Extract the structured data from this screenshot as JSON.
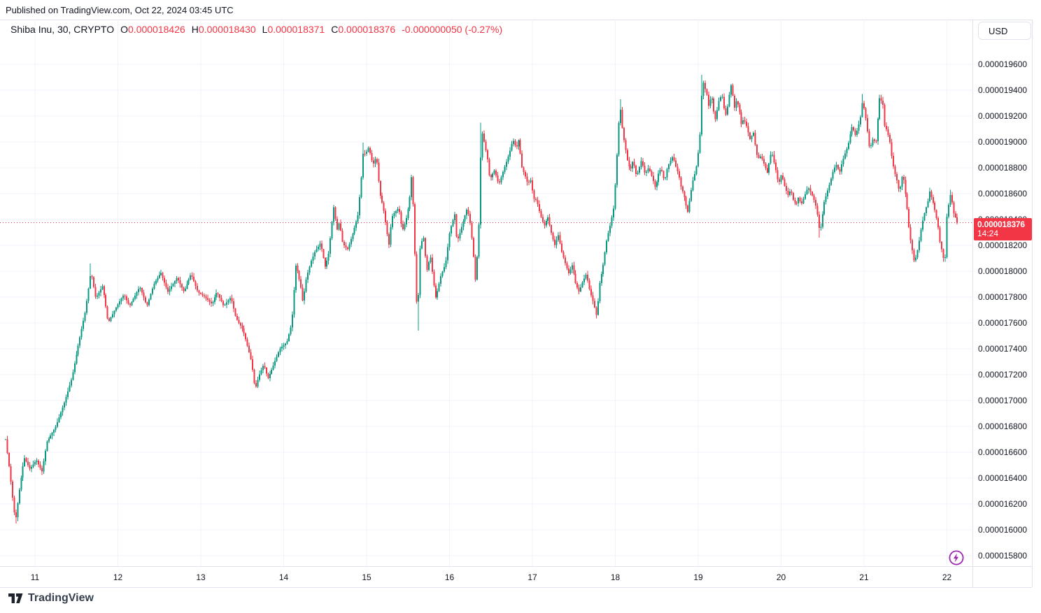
{
  "header": {
    "published": "Published on TradingView.com, Oct 22, 2024 03:45 UTC"
  },
  "legend": {
    "symbol_text": "Shiba Inu, 30, CRYPTO",
    "o_label": "O",
    "o_value": "0.000018426",
    "h_label": "H",
    "h_value": "0.000018430",
    "l_label": "L",
    "l_value": "0.000018371",
    "c_label": "C",
    "c_value": "0.000018376",
    "change": "-0.000000050 (-0.27%)"
  },
  "currency_button": {
    "label": "USD"
  },
  "price_label": {
    "price": "0.000018376",
    "countdown": "14:24"
  },
  "footer": {
    "brand": "TradingView"
  },
  "icons": {
    "boost": "lightning-bolt-icon",
    "logo": "tradingview-logo-mark"
  },
  "colors": {
    "up": "#089981",
    "down": "#f23645",
    "grid": "#f0f3fa",
    "frame": "#e0e3eb",
    "text": "#131722",
    "last_price": "#f23645",
    "boost_purple": "#9c27b0",
    "background": "#ffffff"
  },
  "chart_data": {
    "type": "candlestick",
    "title": "Shiba Inu / USD, 30-minute candles, CRYPTO",
    "symbol": "Shiba Inu",
    "interval_minutes": 30,
    "exchange": "CRYPTO",
    "quote": "USD",
    "grid": true,
    "candles_per_day": 48,
    "price_unit": "1e-9 USD",
    "last_price": 18376,
    "last_candle_ohlc": {
      "open": 18426,
      "high": 18430,
      "low": 18371,
      "close": 18376,
      "change": -50,
      "change_pct": -0.27
    },
    "y_axis": {
      "side": "right",
      "tick_step": 200,
      "min": 15700,
      "max": 19750,
      "ticks": [
        19600,
        19400,
        19200,
        19000,
        18800,
        18600,
        18400,
        18200,
        18000,
        17800,
        17600,
        17400,
        17200,
        17000,
        16800,
        16600,
        16400,
        16200,
        16000,
        15800
      ]
    },
    "x_axis": {
      "unit": "day of October 2024",
      "start_day": 10.646,
      "end_day": 22.122,
      "ticks": [
        11,
        12,
        13,
        14,
        15,
        16,
        17,
        18,
        19,
        20,
        21,
        22
      ]
    },
    "wicks": [
      {
        "day": 10.764,
        "low": 16050
      },
      {
        "day": 11.675,
        "high": 18060
      },
      {
        "day": 14.962,
        "high": 18995
      },
      {
        "day": 15.616,
        "low": 17540
      },
      {
        "day": 16.384,
        "high": 19150
      },
      {
        "day": 18.055,
        "high": 19330
      },
      {
        "day": 19.051,
        "high": 19520
      },
      {
        "day": 20.468,
        "low": 18260
      },
      {
        "day": 20.983,
        "high": 19370
      },
      {
        "day": 21.186,
        "high": 19360
      },
      {
        "day": 21.987,
        "low": 18080
      },
      {
        "day": 22.038,
        "high": 18630
      }
    ],
    "price_path": [
      [
        10.646,
        16700
      ],
      [
        10.696,
        16450
      ],
      [
        10.72,
        16300
      ],
      [
        10.764,
        16060
      ],
      [
        10.81,
        16300
      ],
      [
        10.87,
        16560
      ],
      [
        10.94,
        16470
      ],
      [
        11.017,
        16540
      ],
      [
        11.084,
        16450
      ],
      [
        11.143,
        16680
      ],
      [
        11.253,
        16800
      ],
      [
        11.363,
        17000
      ],
      [
        11.447,
        17180
      ],
      [
        11.532,
        17460
      ],
      [
        11.608,
        17690
      ],
      [
        11.675,
        18000
      ],
      [
        11.733,
        17790
      ],
      [
        11.817,
        17890
      ],
      [
        11.883,
        17600
      ],
      [
        11.996,
        17740
      ],
      [
        12.072,
        17820
      ],
      [
        12.139,
        17730
      ],
      [
        12.266,
        17880
      ],
      [
        12.35,
        17730
      ],
      [
        12.434,
        17900
      ],
      [
        12.519,
        17990
      ],
      [
        12.603,
        17840
      ],
      [
        12.713,
        17950
      ],
      [
        12.797,
        17840
      ],
      [
        12.882,
        17980
      ],
      [
        12.966,
        17840
      ],
      [
        13.051,
        17800
      ],
      [
        13.135,
        17745
      ],
      [
        13.194,
        17840
      ],
      [
        13.278,
        17730
      ],
      [
        13.363,
        17800
      ],
      [
        13.422,
        17640
      ],
      [
        13.506,
        17550
      ],
      [
        13.557,
        17440
      ],
      [
        13.616,
        17290
      ],
      [
        13.641,
        17150
      ],
      [
        13.66,
        17090
      ],
      [
        13.7,
        17190
      ],
      [
        13.759,
        17280
      ],
      [
        13.81,
        17170
      ],
      [
        13.869,
        17260
      ],
      [
        13.954,
        17400
      ],
      [
        14.038,
        17450
      ],
      [
        14.097,
        17600
      ],
      [
        14.148,
        18060
      ],
      [
        14.207,
        17880
      ],
      [
        14.232,
        17760
      ],
      [
        14.274,
        17950
      ],
      [
        14.333,
        18080
      ],
      [
        14.376,
        18150
      ],
      [
        14.418,
        18190
      ],
      [
        14.443,
        18220
      ],
      [
        14.502,
        18030
      ],
      [
        14.544,
        18140
      ],
      [
        14.603,
        18500
      ],
      [
        14.645,
        18320
      ],
      [
        14.671,
        18380
      ],
      [
        14.713,
        18210
      ],
      [
        14.772,
        18170
      ],
      [
        14.839,
        18300
      ],
      [
        14.899,
        18440
      ],
      [
        14.941,
        18750
      ],
      [
        14.962,
        18940
      ],
      [
        14.983,
        18900
      ],
      [
        15.025,
        18960
      ],
      [
        15.076,
        18820
      ],
      [
        15.118,
        18890
      ],
      [
        15.16,
        18600
      ],
      [
        15.203,
        18490
      ],
      [
        15.245,
        18310
      ],
      [
        15.27,
        18200
      ],
      [
        15.304,
        18420
      ],
      [
        15.346,
        18460
      ],
      [
        15.388,
        18490
      ],
      [
        15.43,
        18310
      ],
      [
        15.473,
        18390
      ],
      [
        15.515,
        18530
      ],
      [
        15.549,
        18780
      ],
      [
        15.574,
        18300
      ],
      [
        15.616,
        17560
      ],
      [
        15.637,
        18150
      ],
      [
        15.684,
        18280
      ],
      [
        15.726,
        18000
      ],
      [
        15.768,
        18120
      ],
      [
        15.81,
        17900
      ],
      [
        15.835,
        17790
      ],
      [
        15.895,
        17960
      ],
      [
        15.954,
        18060
      ],
      [
        16.004,
        18310
      ],
      [
        16.063,
        18440
      ],
      [
        16.089,
        18220
      ],
      [
        16.131,
        18310
      ],
      [
        16.173,
        18400
      ],
      [
        16.215,
        18490
      ],
      [
        16.249,
        18380
      ],
      [
        16.283,
        18190
      ],
      [
        16.312,
        17930
      ],
      [
        16.35,
        18250
      ],
      [
        16.384,
        19100
      ],
      [
        16.418,
        19000
      ],
      [
        16.46,
        18860
      ],
      [
        16.485,
        18710
      ],
      [
        16.544,
        18780
      ],
      [
        16.595,
        18670
      ],
      [
        16.637,
        18750
      ],
      [
        16.679,
        18830
      ],
      [
        16.721,
        18910
      ],
      [
        16.764,
        19020
      ],
      [
        16.806,
        18950
      ],
      [
        16.84,
        19030
      ],
      [
        16.865,
        18820
      ],
      [
        16.907,
        18750
      ],
      [
        16.949,
        18670
      ],
      [
        16.975,
        18720
      ],
      [
        17.017,
        18560
      ],
      [
        17.051,
        18550
      ],
      [
        17.093,
        18440
      ],
      [
        17.143,
        18350
      ],
      [
        17.186,
        18420
      ],
      [
        17.228,
        18300
      ],
      [
        17.27,
        18200
      ],
      [
        17.312,
        18280
      ],
      [
        17.354,
        18150
      ],
      [
        17.397,
        18060
      ],
      [
        17.439,
        17980
      ],
      [
        17.481,
        18050
      ],
      [
        17.523,
        17900
      ],
      [
        17.565,
        17840
      ],
      [
        17.608,
        17920
      ],
      [
        17.65,
        17980
      ],
      [
        17.692,
        17850
      ],
      [
        17.734,
        17760
      ],
      [
        17.776,
        17650
      ],
      [
        17.81,
        17900
      ],
      [
        17.852,
        18040
      ],
      [
        17.894,
        18230
      ],
      [
        17.937,
        18350
      ],
      [
        17.979,
        18480
      ],
      [
        18.004,
        18700
      ],
      [
        18.055,
        19300
      ],
      [
        18.089,
        19070
      ],
      [
        18.114,
        18980
      ],
      [
        18.148,
        18850
      ],
      [
        18.181,
        18780
      ],
      [
        18.215,
        18860
      ],
      [
        18.257,
        18730
      ],
      [
        18.316,
        18860
      ],
      [
        18.359,
        18750
      ],
      [
        18.401,
        18800
      ],
      [
        18.443,
        18730
      ],
      [
        18.485,
        18640
      ],
      [
        18.519,
        18750
      ],
      [
        18.553,
        18800
      ],
      [
        18.595,
        18690
      ],
      [
        18.62,
        18780
      ],
      [
        18.654,
        18840
      ],
      [
        18.696,
        18890
      ],
      [
        18.722,
        18820
      ],
      [
        18.764,
        18750
      ],
      [
        18.789,
        18660
      ],
      [
        18.831,
        18580
      ],
      [
        18.873,
        18450
      ],
      [
        18.932,
        18690
      ],
      [
        18.975,
        18790
      ],
      [
        19.017,
        19000
      ],
      [
        19.051,
        19490
      ],
      [
        19.076,
        19420
      ],
      [
        19.101,
        19380
      ],
      [
        19.127,
        19270
      ],
      [
        19.16,
        19370
      ],
      [
        19.186,
        19240
      ],
      [
        19.211,
        19170
      ],
      [
        19.245,
        19310
      ],
      [
        19.287,
        19370
      ],
      [
        19.312,
        19260
      ],
      [
        19.338,
        19200
      ],
      [
        19.371,
        19350
      ],
      [
        19.397,
        19440
      ],
      [
        19.414,
        19370
      ],
      [
        19.439,
        19260
      ],
      [
        19.464,
        19330
      ],
      [
        19.498,
        19240
      ],
      [
        19.523,
        19130
      ],
      [
        19.549,
        19180
      ],
      [
        19.591,
        19110
      ],
      [
        19.624,
        19020
      ],
      [
        19.667,
        19070
      ],
      [
        19.692,
        18960
      ],
      [
        19.717,
        18870
      ],
      [
        19.759,
        18890
      ],
      [
        19.793,
        18830
      ],
      [
        19.835,
        18760
      ],
      [
        19.861,
        18860
      ],
      [
        19.886,
        18930
      ],
      [
        19.92,
        18830
      ],
      [
        19.945,
        18760
      ],
      [
        19.97,
        18670
      ],
      [
        20.004,
        18750
      ],
      [
        20.046,
        18650
      ],
      [
        20.089,
        18580
      ],
      [
        20.114,
        18640
      ],
      [
        20.139,
        18560
      ],
      [
        20.181,
        18510
      ],
      [
        20.215,
        18580
      ],
      [
        20.241,
        18510
      ],
      [
        20.283,
        18580
      ],
      [
        20.325,
        18650
      ],
      [
        20.367,
        18600
      ],
      [
        20.409,
        18530
      ],
      [
        20.435,
        18450
      ],
      [
        20.468,
        18290
      ],
      [
        20.519,
        18530
      ],
      [
        20.561,
        18620
      ],
      [
        20.595,
        18690
      ],
      [
        20.62,
        18760
      ],
      [
        20.662,
        18830
      ],
      [
        20.705,
        18760
      ],
      [
        20.73,
        18830
      ],
      [
        20.764,
        18900
      ],
      [
        20.806,
        18970
      ],
      [
        20.831,
        19050
      ],
      [
        20.857,
        19120
      ],
      [
        20.899,
        19050
      ],
      [
        20.932,
        19120
      ],
      [
        20.958,
        19190
      ],
      [
        20.983,
        19320
      ],
      [
        21.025,
        19170
      ],
      [
        21.068,
        18940
      ],
      [
        21.11,
        19030
      ],
      [
        21.143,
        18980
      ],
      [
        21.186,
        19340
      ],
      [
        21.228,
        19300
      ],
      [
        21.245,
        19130
      ],
      [
        21.278,
        19090
      ],
      [
        21.312,
        19000
      ],
      [
        21.338,
        18870
      ],
      [
        21.363,
        18780
      ],
      [
        21.397,
        18700
      ],
      [
        21.422,
        18620
      ],
      [
        21.447,
        18670
      ],
      [
        21.464,
        18760
      ],
      [
        21.489,
        18670
      ],
      [
        21.506,
        18560
      ],
      [
        21.523,
        18470
      ],
      [
        21.549,
        18290
      ],
      [
        21.574,
        18200
      ],
      [
        21.591,
        18130
      ],
      [
        21.608,
        18070
      ],
      [
        21.633,
        18120
      ],
      [
        21.658,
        18200
      ],
      [
        21.675,
        18270
      ],
      [
        21.692,
        18340
      ],
      [
        21.717,
        18420
      ],
      [
        21.743,
        18480
      ],
      [
        21.776,
        18550
      ],
      [
        21.785,
        18630
      ],
      [
        21.819,
        18560
      ],
      [
        21.844,
        18510
      ],
      [
        21.861,
        18450
      ],
      [
        21.886,
        18380
      ],
      [
        21.903,
        18310
      ],
      [
        21.911,
        18240
      ],
      [
        21.928,
        18200
      ],
      [
        21.945,
        18150
      ],
      [
        21.954,
        18100
      ],
      [
        21.987,
        18110
      ],
      [
        21.995,
        18400
      ],
      [
        22.029,
        18550
      ],
      [
        22.038,
        18600
      ],
      [
        22.071,
        18510
      ],
      [
        22.08,
        18450
      ],
      [
        22.097,
        18430
      ],
      [
        22.114,
        18400
      ],
      [
        22.122,
        18376
      ]
    ]
  }
}
